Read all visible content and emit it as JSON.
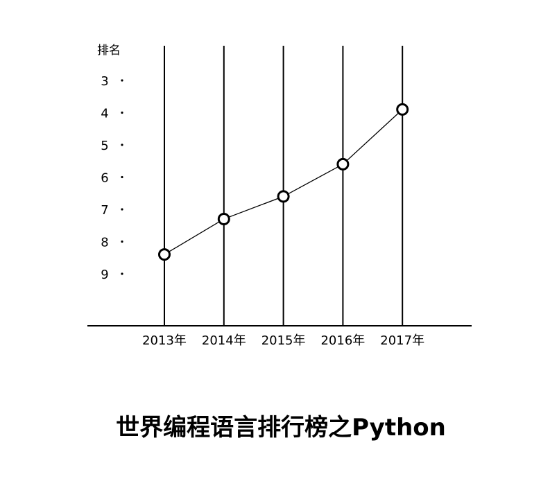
{
  "chart_data": {
    "type": "line",
    "title": "世界编程语言排行榜之Python",
    "ylabel": "排名",
    "xlabel": "",
    "categories": [
      "2013年",
      "2014年",
      "2015年",
      "2016年",
      "2017年"
    ],
    "series": [
      {
        "values": [
          8.4,
          7.3,
          6.6,
          5.6,
          3.9
        ]
      }
    ],
    "y_ticks": [
      "3",
      "4",
      "5",
      "6",
      "7",
      "8",
      "9"
    ],
    "ylim": [
      2.9,
      9.9
    ],
    "y_inverted": true,
    "grid": "vertical",
    "legend": "none",
    "colors": {
      "line": "#000000",
      "marker_fill": "#ffffff",
      "marker_stroke": "#000000",
      "background": "#ffffff"
    }
  }
}
